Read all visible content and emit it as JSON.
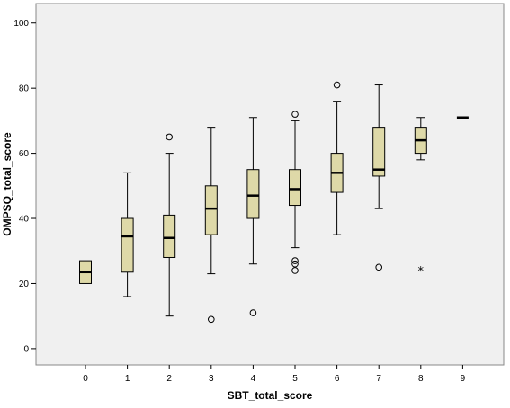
{
  "chart_data": {
    "type": "boxplot",
    "title": "",
    "xlabel": "SBT_total_score",
    "ylabel": "OMPSQ_total_score",
    "ylim": [
      -5,
      106
    ],
    "yticks": [
      0,
      20,
      40,
      60,
      80,
      100
    ],
    "grid": false,
    "background_color": "#f0f0f0",
    "box_color": "#ded9a8",
    "categories": [
      "0",
      "1",
      "2",
      "3",
      "4",
      "5",
      "6",
      "7",
      "8",
      "9"
    ],
    "boxes": [
      {
        "category": "0",
        "q1": 20,
        "median": 23.5,
        "q3": 27,
        "whisker_low": 20,
        "whisker_high": 27,
        "outliers": [],
        "extremes": []
      },
      {
        "category": "1",
        "q1": 23.5,
        "median": 34.5,
        "q3": 40,
        "whisker_low": 16,
        "whisker_high": 54,
        "outliers": [],
        "extremes": []
      },
      {
        "category": "2",
        "q1": 28,
        "median": 34,
        "q3": 41,
        "whisker_low": 10,
        "whisker_high": 60,
        "outliers": [
          65
        ],
        "extremes": []
      },
      {
        "category": "3",
        "q1": 35,
        "median": 43,
        "q3": 50,
        "whisker_low": 23,
        "whisker_high": 68,
        "outliers": [
          9
        ],
        "extremes": []
      },
      {
        "category": "4",
        "q1": 40,
        "median": 47,
        "q3": 55,
        "whisker_low": 26,
        "whisker_high": 71,
        "outliers": [
          11
        ],
        "extremes": []
      },
      {
        "category": "5",
        "q1": 44,
        "median": 49,
        "q3": 55,
        "whisker_low": 31,
        "whisker_high": 70,
        "outliers": [
          72,
          27,
          26,
          24
        ],
        "extremes": []
      },
      {
        "category": "6",
        "q1": 48,
        "median": 54,
        "q3": 60,
        "whisker_low": 35,
        "whisker_high": 76,
        "outliers": [
          81
        ],
        "extremes": []
      },
      {
        "category": "7",
        "q1": 53,
        "median": 55,
        "q3": 68,
        "whisker_low": 43,
        "whisker_high": 81,
        "outliers": [
          25
        ],
        "extremes": []
      },
      {
        "category": "8",
        "q1": 60,
        "median": 64,
        "q3": 68,
        "whisker_low": 58,
        "whisker_high": 71,
        "outliers": [],
        "extremes": [
          24
        ]
      },
      {
        "category": "9",
        "q1": 71,
        "median": 71,
        "q3": 71,
        "whisker_low": 71,
        "whisker_high": 71,
        "outliers": [],
        "extremes": []
      }
    ]
  }
}
